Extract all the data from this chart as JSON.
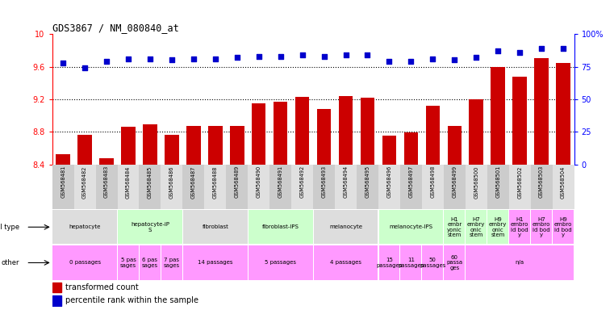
{
  "title": "GDS3867 / NM_080840_at",
  "samples": [
    "GSM568481",
    "GSM568482",
    "GSM568483",
    "GSM568484",
    "GSM568485",
    "GSM568486",
    "GSM568487",
    "GSM568488",
    "GSM568489",
    "GSM568490",
    "GSM568491",
    "GSM568492",
    "GSM568493",
    "GSM568494",
    "GSM568495",
    "GSM568496",
    "GSM568497",
    "GSM568498",
    "GSM568499",
    "GSM568500",
    "GSM568501",
    "GSM568502",
    "GSM568503",
    "GSM568504"
  ],
  "bar_values": [
    8.52,
    8.76,
    8.47,
    8.86,
    8.89,
    8.76,
    8.87,
    8.87,
    8.87,
    9.15,
    9.17,
    9.23,
    9.08,
    9.24,
    9.22,
    8.75,
    8.79,
    9.12,
    8.87,
    9.2,
    9.6,
    9.48,
    9.7,
    9.65
  ],
  "percentile_values": [
    78,
    74,
    79,
    81,
    81,
    80,
    81,
    81,
    82,
    83,
    83,
    84,
    83,
    84,
    84,
    79,
    79,
    81,
    80,
    82,
    87,
    86,
    89,
    89
  ],
  "ylim_left": [
    8.4,
    10.0
  ],
  "ylim_right": [
    0,
    100
  ],
  "yticks_left": [
    8.4,
    8.8,
    9.2,
    9.6,
    10.0
  ],
  "ytick_labels_left": [
    "8.4",
    "8.8",
    "9.2",
    "9.6",
    "10"
  ],
  "yticks_right": [
    0,
    25,
    50,
    75,
    100
  ],
  "ytick_labels_right": [
    "0",
    "25",
    "50",
    "75",
    "100%"
  ],
  "hlines": [
    8.8,
    9.2,
    9.6
  ],
  "bar_color": "#cc0000",
  "dot_color": "#0000cc",
  "bg_color": "#ffffff",
  "cell_type_rows": [
    {
      "label": "hepatocyte",
      "start": 0,
      "end": 3,
      "color": "#dddddd"
    },
    {
      "label": "hepatocyte-iP\nS",
      "start": 3,
      "end": 6,
      "color": "#ccffcc"
    },
    {
      "label": "fibroblast",
      "start": 6,
      "end": 9,
      "color": "#dddddd"
    },
    {
      "label": "fibroblast-IPS",
      "start": 9,
      "end": 12,
      "color": "#ccffcc"
    },
    {
      "label": "melanocyte",
      "start": 12,
      "end": 15,
      "color": "#dddddd"
    },
    {
      "label": "melanocyte-IPS",
      "start": 15,
      "end": 18,
      "color": "#ccffcc"
    },
    {
      "label": "H1\nembr\nyonic\nstem",
      "start": 18,
      "end": 19,
      "color": "#ccffcc"
    },
    {
      "label": "H7\nembry\nonic\nstem",
      "start": 19,
      "end": 20,
      "color": "#ccffcc"
    },
    {
      "label": "H9\nembry\nonic\nstem",
      "start": 20,
      "end": 21,
      "color": "#ccffcc"
    },
    {
      "label": "H1\nembro\nid bod\ny",
      "start": 21,
      "end": 22,
      "color": "#ff99ff"
    },
    {
      "label": "H7\nembro\nid bod\ny",
      "start": 22,
      "end": 23,
      "color": "#ff99ff"
    },
    {
      "label": "H9\nembro\nid bod\ny",
      "start": 23,
      "end": 24,
      "color": "#ff99ff"
    }
  ],
  "other_rows": [
    {
      "label": "0 passages",
      "start": 0,
      "end": 3,
      "color": "#ff99ff"
    },
    {
      "label": "5 pas\nsages",
      "start": 3,
      "end": 4,
      "color": "#ff99ff"
    },
    {
      "label": "6 pas\nsages",
      "start": 4,
      "end": 5,
      "color": "#ff99ff"
    },
    {
      "label": "7 pas\nsages",
      "start": 5,
      "end": 6,
      "color": "#ff99ff"
    },
    {
      "label": "14 passages",
      "start": 6,
      "end": 9,
      "color": "#ff99ff"
    },
    {
      "label": "5 passages",
      "start": 9,
      "end": 12,
      "color": "#ff99ff"
    },
    {
      "label": "4 passages",
      "start": 12,
      "end": 15,
      "color": "#ff99ff"
    },
    {
      "label": "15\npassages",
      "start": 15,
      "end": 16,
      "color": "#ff99ff"
    },
    {
      "label": "11\npassages",
      "start": 16,
      "end": 17,
      "color": "#ff99ff"
    },
    {
      "label": "50\npassages",
      "start": 17,
      "end": 18,
      "color": "#ff99ff"
    },
    {
      "label": "60\npassa\nges",
      "start": 18,
      "end": 19,
      "color": "#ff99ff"
    },
    {
      "label": "n/a",
      "start": 19,
      "end": 24,
      "color": "#ff99ff"
    }
  ],
  "legend_items": [
    {
      "color": "#cc0000",
      "label": "transformed count"
    },
    {
      "color": "#0000cc",
      "label": "percentile rank within the sample"
    }
  ]
}
